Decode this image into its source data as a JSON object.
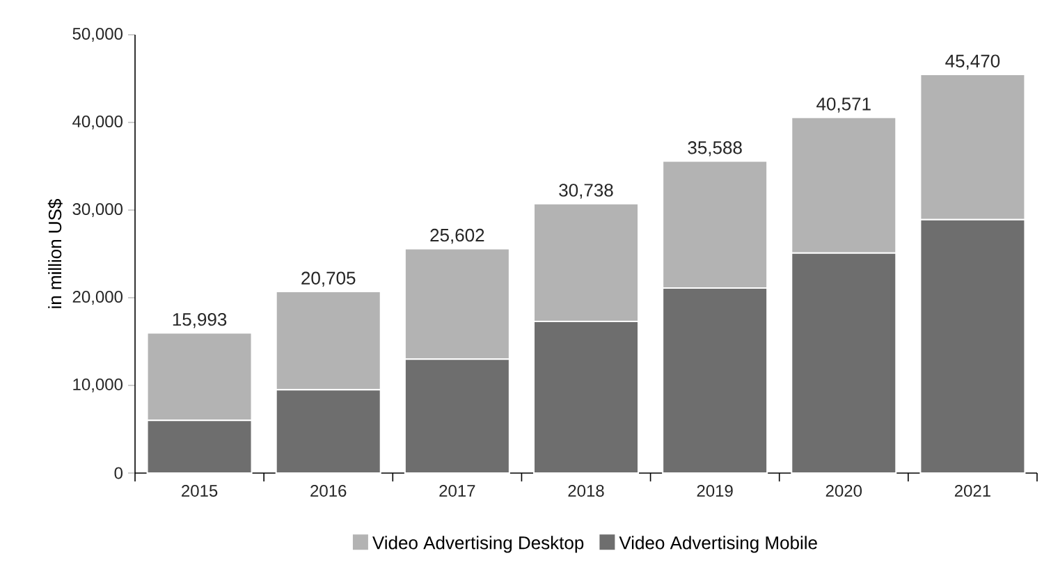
{
  "chart_data": {
    "type": "bar",
    "stacked": true,
    "ylabel": "in million US$",
    "categories": [
      "2015",
      "2016",
      "2017",
      "2018",
      "2019",
      "2020",
      "2021"
    ],
    "series": [
      {
        "name": "Video Advertising Mobile",
        "color": "#6e6e6e",
        "values": [
          6000,
          9500,
          13000,
          17300,
          21100,
          25100,
          28900
        ]
      },
      {
        "name": "Video Advertising Desktop",
        "color": "#b3b3b3",
        "values": [
          9993,
          11205,
          12602,
          13438,
          14488,
          15471,
          16570
        ]
      }
    ],
    "totals": [
      "15,993",
      "20,705",
      "25,602",
      "30,738",
      "35,588",
      "40,571",
      "45,470"
    ],
    "ylim": [
      0,
      50000
    ],
    "yticks": [
      0,
      {
        "value": 10000,
        "label": "10,000"
      },
      {
        "value": 20000,
        "label": "20,000"
      },
      {
        "value": 30000,
        "label": "30,000"
      },
      {
        "value": 40000,
        "label": "40,000"
      },
      {
        "value": 50000,
        "label": "50,000"
      }
    ],
    "grid": false,
    "legend": "bottom"
  }
}
